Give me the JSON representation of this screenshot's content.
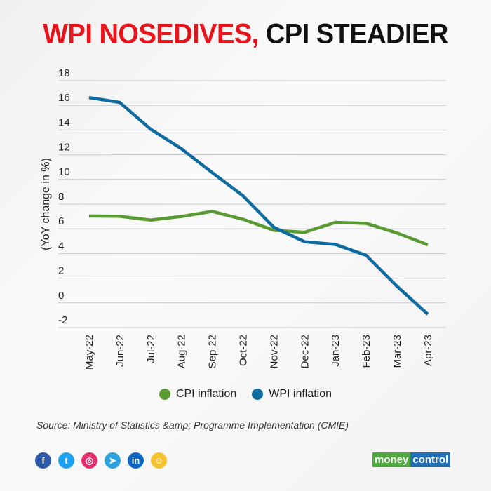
{
  "title": {
    "part1": "WPI NOSEDIVES,",
    "part2": "CPI STEADIER"
  },
  "chart_data": {
    "type": "line",
    "title": "WPI NOSEDIVES, CPI STEADIER",
    "ylabel": "(YoY change in %)",
    "xlabel": "",
    "ylim": [
      -2,
      18
    ],
    "yticks": [
      18,
      16,
      14,
      12,
      10,
      8,
      6,
      4,
      2,
      0,
      -2
    ],
    "grid": true,
    "legend_placement": "bottom",
    "categories": [
      "May-22",
      "Jun-22",
      "Jul-22",
      "Aug-22",
      "Sep-22",
      "Oct-22",
      "Nov-22",
      "Dec-22",
      "Jan-23",
      "Feb-23",
      "Mar-23",
      "Apr-23"
    ],
    "series": [
      {
        "name": "CPI inflation",
        "color": "#5a9a32",
        "values": [
          7.04,
          7.01,
          6.71,
          7.0,
          7.41,
          6.77,
          5.88,
          5.72,
          6.52,
          6.44,
          5.66,
          4.7
        ]
      },
      {
        "name": "WPI inflation",
        "color": "#0f6aa0",
        "values": [
          16.63,
          16.23,
          14.07,
          12.48,
          10.55,
          8.67,
          6.12,
          4.95,
          4.73,
          3.85,
          1.34,
          -0.92
        ]
      }
    ]
  },
  "source": "Source: Ministry of   Statistics &amp; Programme Implementation (CMIE)",
  "social": [
    {
      "icon": "facebook-icon",
      "glyph": "f",
      "color": "#2d5aa8"
    },
    {
      "icon": "twitter-icon",
      "glyph": "t",
      "color": "#1da1f2"
    },
    {
      "icon": "instagram-icon",
      "glyph": "◎",
      "color": "#e1306c"
    },
    {
      "icon": "telegram-icon",
      "glyph": "➤",
      "color": "#2aa3de"
    },
    {
      "icon": "linkedin-icon",
      "glyph": "in",
      "color": "#0a66c2"
    },
    {
      "icon": "snapchat-icon",
      "glyph": "☺",
      "color": "#f4c430"
    }
  ],
  "logo": {
    "part1": "money",
    "part2": "control"
  }
}
